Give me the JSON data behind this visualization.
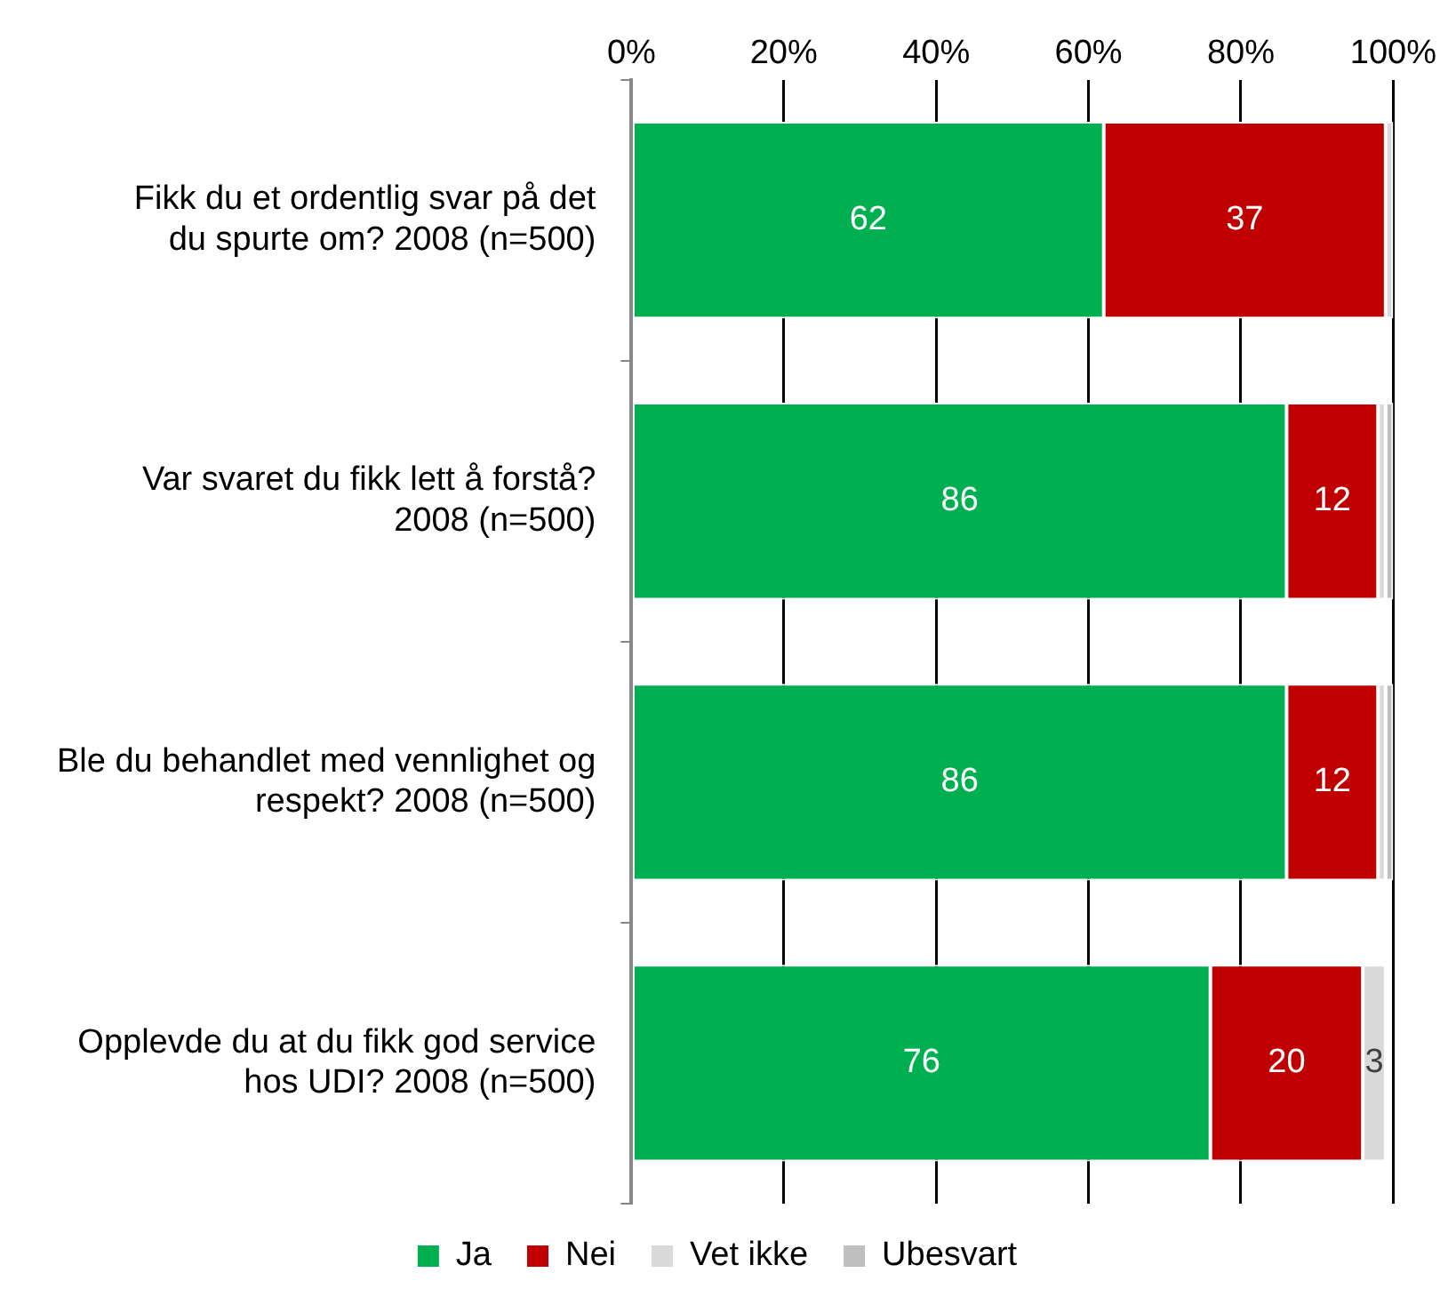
{
  "chart_data": {
    "type": "bar",
    "orientation": "horizontal",
    "stacked": true,
    "categories": [
      "Fikk du et ordentlig svar på det du spurte om? 2008 (n=500)",
      "Var svaret du fikk lett å forstå? 2008 (n=500)",
      "Ble du behandlet med vennlighet og respekt? 2008 (n=500)",
      "Opplevde du at du fikk god service hos UDI? 2008 (n=500)"
    ],
    "series": [
      {
        "name": "Ja",
        "color": "#00b050",
        "values": [
          62,
          86,
          86,
          76
        ],
        "value_labels": [
          "62",
          "86",
          "86",
          "76"
        ]
      },
      {
        "name": "Nei",
        "color": "#c00000",
        "values": [
          37,
          12,
          12,
          20
        ],
        "value_labels": [
          "37",
          "12",
          "12",
          "20"
        ]
      },
      {
        "name": "Vet ikke",
        "color": "#d9d9d9",
        "values": [
          1,
          1,
          1,
          3
        ],
        "value_labels": [
          null,
          null,
          null,
          "3"
        ]
      },
      {
        "name": "Ubesvart",
        "color": "#bfbfbf",
        "values": [
          0,
          1,
          1,
          0
        ]
      }
    ],
    "xlim": [
      0,
      100
    ],
    "xticks": [
      {
        "value": 0,
        "label": "0%"
      },
      {
        "value": 20,
        "label": "20%"
      },
      {
        "value": 40,
        "label": "40%"
      },
      {
        "value": 60,
        "label": "60%"
      },
      {
        "value": 80,
        "label": "80%"
      },
      {
        "value": 100,
        "label": "100%"
      }
    ],
    "grid": "x",
    "legend": "bottom"
  }
}
